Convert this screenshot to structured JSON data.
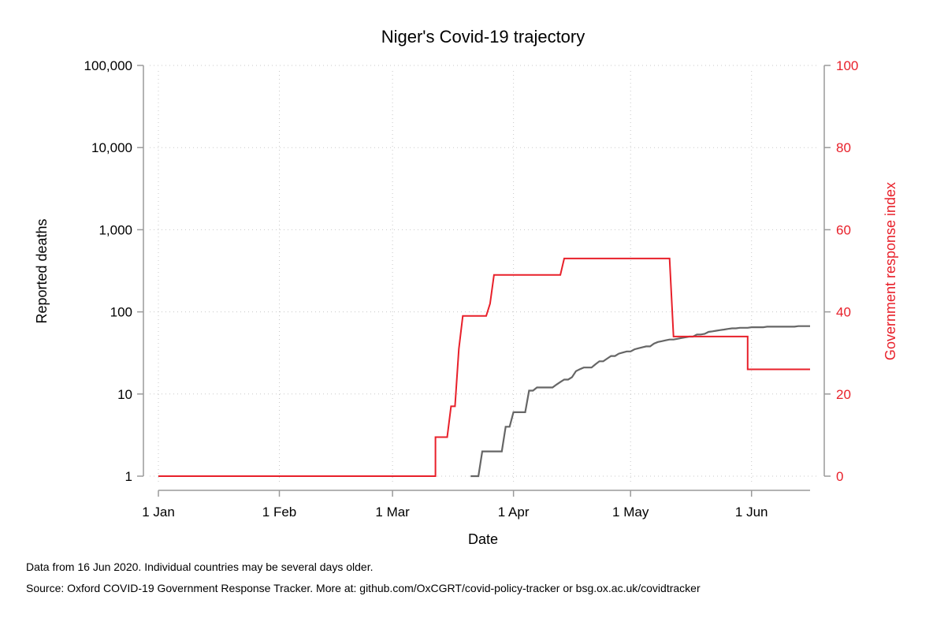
{
  "chart_data": {
    "type": "line",
    "title": "Niger's Covid-19 trajectory",
    "xlabel": "Date",
    "ylabel_left": "Reported deaths",
    "ylabel_right": "Government response index",
    "x_ticks": [
      "1 Jan",
      "1 Feb",
      "1 Mar",
      "1 Apr",
      "1 May",
      "1 Jun"
    ],
    "x_tick_dates": [
      "2020-01-01",
      "2020-02-01",
      "2020-03-01",
      "2020-04-01",
      "2020-05-01",
      "2020-06-01"
    ],
    "x_range": [
      "2020-01-01",
      "2020-06-16"
    ],
    "y_left_scale": "log",
    "y_left_range": [
      1,
      100000
    ],
    "y_left_ticks": [
      1,
      10,
      100,
      1000,
      10000,
      100000
    ],
    "y_left_tick_labels": [
      "1",
      "10",
      "100",
      "1,000",
      "10,000",
      "100,000"
    ],
    "y_right_range": [
      0,
      100
    ],
    "y_right_ticks": [
      0,
      20,
      40,
      60,
      80,
      100
    ],
    "y_right_tick_labels": [
      "0",
      "20",
      "40",
      "60",
      "80",
      "100"
    ],
    "grid": true,
    "legend": "none",
    "series": [
      {
        "axis": "left",
        "color": "#666666",
        "points": [
          [
            "2020-03-21",
            1
          ],
          [
            "2020-03-23",
            1
          ],
          [
            "2020-03-24",
            2
          ],
          [
            "2020-03-29",
            2
          ],
          [
            "2020-03-30",
            4
          ],
          [
            "2020-03-31",
            4
          ],
          [
            "2020-04-01",
            6
          ],
          [
            "2020-04-04",
            6
          ],
          [
            "2020-04-05",
            11
          ],
          [
            "2020-04-06",
            11
          ],
          [
            "2020-04-07",
            12
          ],
          [
            "2020-04-11",
            12
          ],
          [
            "2020-04-12",
            13
          ],
          [
            "2020-04-13",
            14
          ],
          [
            "2020-04-14",
            15
          ],
          [
            "2020-04-15",
            15
          ],
          [
            "2020-04-16",
            16
          ],
          [
            "2020-04-17",
            19
          ],
          [
            "2020-04-18",
            20
          ],
          [
            "2020-04-19",
            21
          ],
          [
            "2020-04-21",
            21
          ],
          [
            "2020-04-22",
            23
          ],
          [
            "2020-04-23",
            25
          ],
          [
            "2020-04-24",
            25
          ],
          [
            "2020-04-25",
            27
          ],
          [
            "2020-04-26",
            29
          ],
          [
            "2020-04-27",
            29
          ],
          [
            "2020-04-28",
            31
          ],
          [
            "2020-04-29",
            32
          ],
          [
            "2020-04-30",
            33
          ],
          [
            "2020-05-01",
            33
          ],
          [
            "2020-05-02",
            35
          ],
          [
            "2020-05-03",
            36
          ],
          [
            "2020-05-04",
            37
          ],
          [
            "2020-05-05",
            38
          ],
          [
            "2020-05-06",
            38
          ],
          [
            "2020-05-07",
            41
          ],
          [
            "2020-05-08",
            43
          ],
          [
            "2020-05-09",
            44
          ],
          [
            "2020-05-10",
            45
          ],
          [
            "2020-05-11",
            46
          ],
          [
            "2020-05-12",
            46
          ],
          [
            "2020-05-13",
            47
          ],
          [
            "2020-05-14",
            48
          ],
          [
            "2020-05-15",
            49
          ],
          [
            "2020-05-16",
            50
          ],
          [
            "2020-05-17",
            50
          ],
          [
            "2020-05-18",
            53
          ],
          [
            "2020-05-19",
            53
          ],
          [
            "2020-05-20",
            54
          ],
          [
            "2020-05-21",
            57
          ],
          [
            "2020-05-22",
            58
          ],
          [
            "2020-05-23",
            59
          ],
          [
            "2020-05-24",
            60
          ],
          [
            "2020-05-25",
            61
          ],
          [
            "2020-05-26",
            62
          ],
          [
            "2020-05-27",
            63
          ],
          [
            "2020-05-28",
            63
          ],
          [
            "2020-05-29",
            64
          ],
          [
            "2020-05-31",
            64
          ],
          [
            "2020-06-01",
            65
          ],
          [
            "2020-06-04",
            65
          ],
          [
            "2020-06-05",
            66
          ],
          [
            "2020-06-12",
            66
          ],
          [
            "2020-06-13",
            67
          ],
          [
            "2020-06-16",
            67
          ]
        ]
      },
      {
        "axis": "right",
        "color": "#e8202a",
        "points": [
          [
            "2020-01-01",
            0
          ],
          [
            "2020-03-12",
            0
          ],
          [
            "2020-03-12",
            9.5
          ],
          [
            "2020-03-15",
            9.5
          ],
          [
            "2020-03-16",
            17
          ],
          [
            "2020-03-17",
            17
          ],
          [
            "2020-03-18",
            31
          ],
          [
            "2020-03-19",
            39
          ],
          [
            "2020-03-25",
            39
          ],
          [
            "2020-03-26",
            42
          ],
          [
            "2020-03-27",
            49
          ],
          [
            "2020-04-13",
            49
          ],
          [
            "2020-04-14",
            53
          ],
          [
            "2020-05-11",
            53
          ],
          [
            "2020-05-12",
            34
          ],
          [
            "2020-05-31",
            34
          ],
          [
            "2020-05-31",
            26
          ],
          [
            "2020-06-16",
            26
          ]
        ]
      }
    ]
  },
  "notes": {
    "line1": "Data from 16 Jun 2020. Individual countries may be several days older.",
    "line2": "Source: Oxford COVID-19 Government Response Tracker. More at: github.com/OxCGRT/covid-policy-tracker or bsg.ox.ac.uk/covidtracker"
  }
}
